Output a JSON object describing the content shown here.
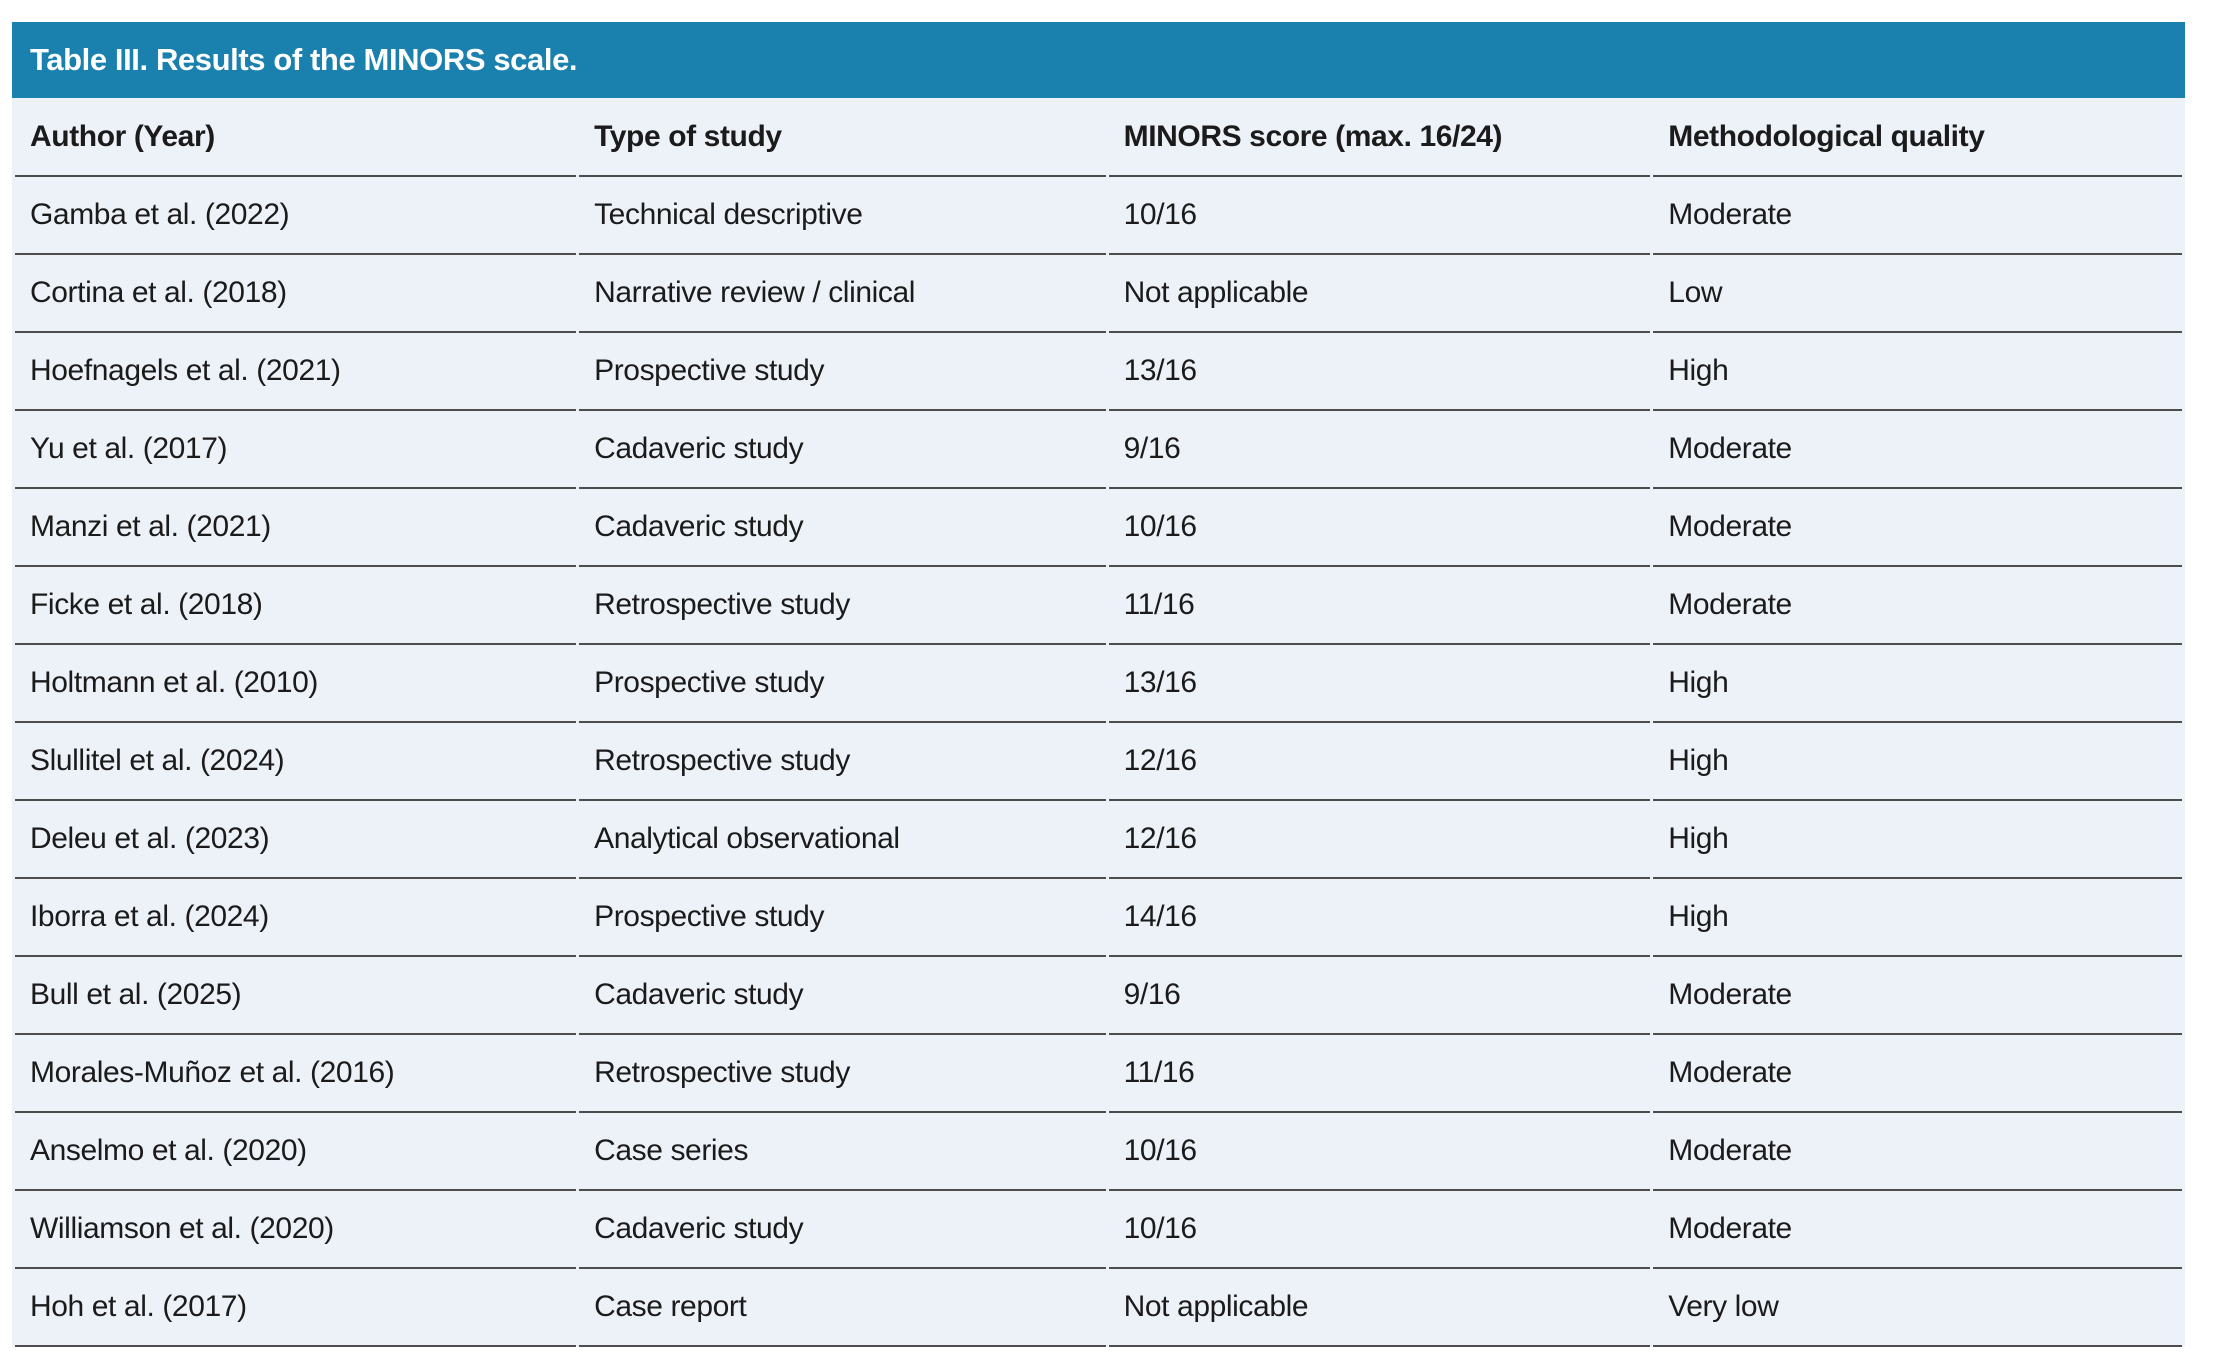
{
  "table": {
    "title": "Table III. Results of the MINORS scale.",
    "columns": [
      "Author (Year)",
      "Type of study",
      "MINORS score (max. 16/24)",
      "Methodological quality"
    ],
    "rows": [
      [
        "Gamba et al. (2022)",
        "Technical descriptive",
        "10/16",
        "Moderate"
      ],
      [
        "Cortina et al. (2018)",
        "Narrative review / clinical",
        "Not applicable",
        "Low"
      ],
      [
        "Hoefnagels et al. (2021)",
        "Prospective study",
        "13/16",
        "High"
      ],
      [
        "Yu et al. (2017)",
        "Cadaveric study",
        "9/16",
        "Moderate"
      ],
      [
        "Manzi et al. (2021)",
        "Cadaveric study",
        "10/16",
        "Moderate"
      ],
      [
        "Ficke et al. (2018)",
        "Retrospective study",
        "11/16",
        "Moderate"
      ],
      [
        "Holtmann et al. (2010)",
        "Prospective study",
        "13/16",
        "High"
      ],
      [
        "Slullitel et al. (2024)",
        "Retrospective study",
        "12/16",
        "High"
      ],
      [
        "Deleu et al. (2023)",
        "Analytical observational",
        "12/16",
        "High"
      ],
      [
        "Iborra et al. (2024)",
        "Prospective study",
        "14/16",
        "High"
      ],
      [
        "Bull et al. (2025)",
        "Cadaveric study",
        "9/16",
        "Moderate"
      ],
      [
        "Morales-Muñoz et al. (2016)",
        "Retrospective study",
        "11/16",
        "Moderate"
      ],
      [
        "Anselmo et al. (2020)",
        "Case series",
        "10/16",
        "Moderate"
      ],
      [
        "Williamson et al. (2020)",
        "Cadaveric study",
        "10/16",
        "Moderate"
      ],
      [
        "Hoh et al. (2017)",
        "Case report",
        "Not applicable",
        "Very low"
      ]
    ],
    "colors": {
      "banner": "#1a80ad",
      "row_bg": "#edf1f8",
      "border": "#4d4d4d",
      "text": "#1b1b1b",
      "title_text": "#ffffff"
    }
  }
}
